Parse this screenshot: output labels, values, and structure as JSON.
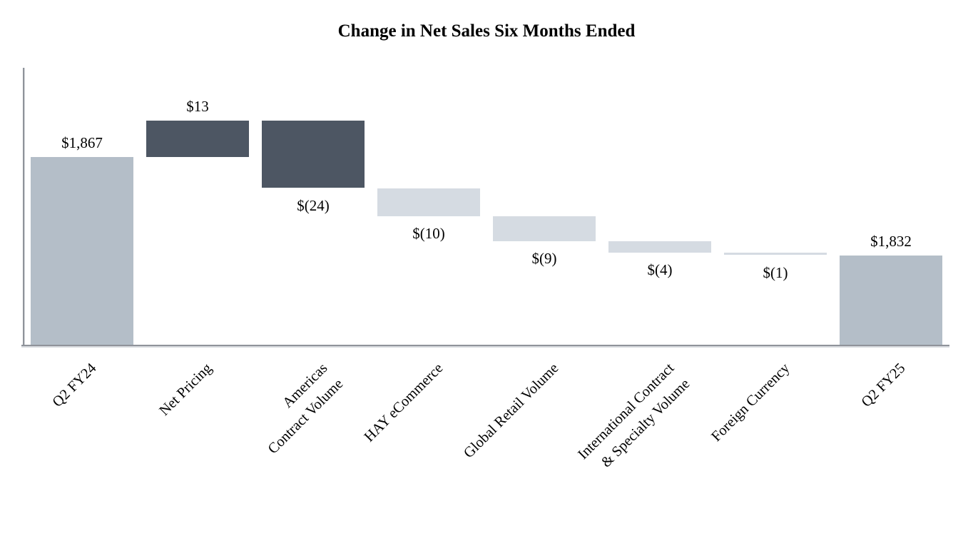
{
  "title": "Change in Net Sales Six Months Ended",
  "colors": {
    "endpoint_bar": "#b4bec8",
    "dark_bar": "#4d5663",
    "light_bar": "#d5dbe2",
    "axis": "#8f939a",
    "text": "#000000",
    "background": "#ffffff"
  },
  "chart_data": {
    "type": "bar",
    "subtype": "waterfall",
    "title": "Change in Net Sales Six Months Ended",
    "xlabel": "",
    "ylabel": "",
    "ylim": [
      1800,
      1899
    ],
    "grid": false,
    "legend": false,
    "categories": [
      "Q2 FY24",
      "Net Pricing",
      "Americas\nContract Volume",
      "HAY eCommerce",
      "Global Retail Volume",
      "International Contract\n& Specialty Volume",
      "Foreign Currency",
      "Q2 FY25"
    ],
    "bars": [
      {
        "category": "Q2 FY24",
        "value": 1867,
        "display": "$1,867",
        "kind": "total",
        "label_position": "above",
        "color": "#b4bec8"
      },
      {
        "category": "Net Pricing",
        "value": 13,
        "display": "$13",
        "kind": "delta",
        "label_position": "above",
        "color": "#4d5663"
      },
      {
        "category": "Americas\nContract Volume",
        "value": -24,
        "display": "$(24)",
        "kind": "delta",
        "label_position": "below",
        "color": "#4d5663"
      },
      {
        "category": "HAY eCommerce",
        "value": -10,
        "display": "$(10)",
        "kind": "delta",
        "label_position": "below",
        "color": "#d5dbe2"
      },
      {
        "category": "Global Retail Volume",
        "value": -9,
        "display": "$(9)",
        "kind": "delta",
        "label_position": "below",
        "color": "#d5dbe2"
      },
      {
        "category": "International Contract\n& Specialty Volume",
        "value": -4,
        "display": "$(4)",
        "kind": "delta",
        "label_position": "below",
        "color": "#d5dbe2"
      },
      {
        "category": "Foreign Currency",
        "value": -1,
        "display": "$(1)",
        "kind": "delta",
        "label_position": "below",
        "color": "#d5dbe2"
      },
      {
        "category": "Q2 FY25",
        "value": 1832,
        "display": "$1,832",
        "kind": "total",
        "label_position": "above",
        "color": "#b4bec8"
      }
    ]
  }
}
